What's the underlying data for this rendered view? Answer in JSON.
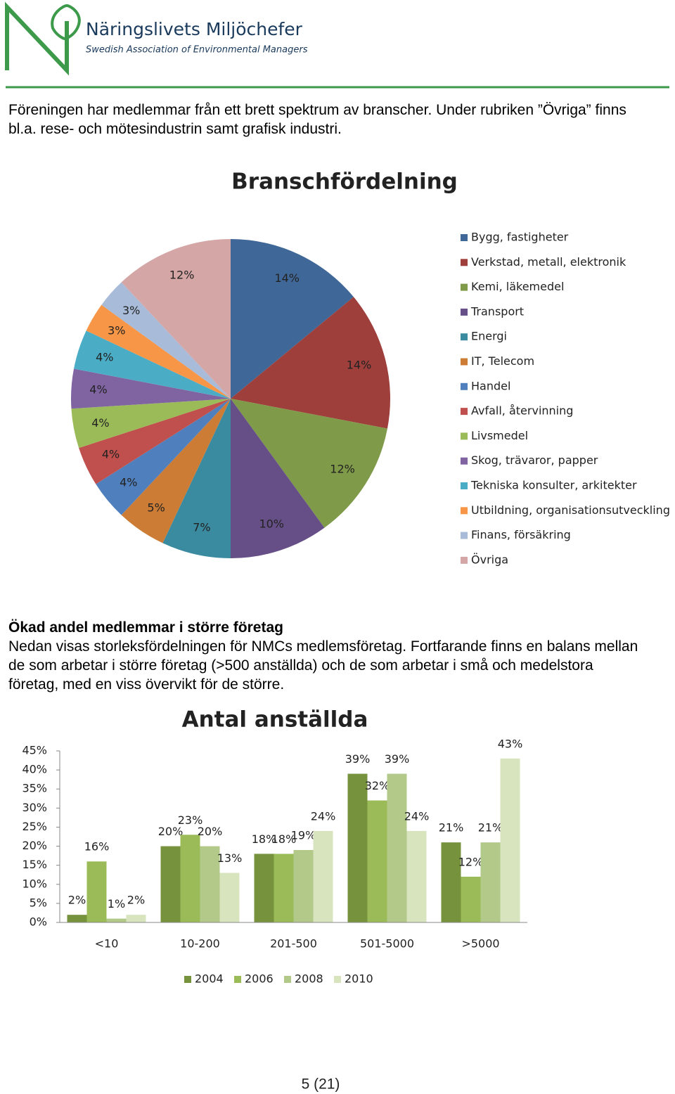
{
  "header": {
    "org_name": "Näringslivets Miljöchefer",
    "org_subtitle": "Swedish Association of Environmental Managers"
  },
  "intro": "Föreningen har medlemmar från ett brett spektrum av branscher. Under rubriken ”Övriga” finns bl.a. rese- och mötesindustrin samt grafisk industri.",
  "section": {
    "heading": "Ökad andel medlemmar i större företag",
    "text": "Nedan visas storleksfördelningen för NMCs medlemsföretag. Fortfarande finns en balans mellan de som arbetar i större företag (>500 anställda) och de som arbetar i små och medelstora företag, med en viss övervikt för de större."
  },
  "page_number": "5 (21)",
  "chart_data": [
    {
      "type": "pie",
      "title": "Branschfördelning",
      "categories": [
        "Bygg, fastigheter",
        "Verkstad, metall, elektronik",
        "Kemi, läkemedel",
        "Transport",
        "Energi",
        "IT, Telecom",
        "Handel",
        "Avfall, återvinning",
        "Livsmedel",
        "Skog, trävaror, papper",
        "Tekniska konsulter, arkitekter",
        "Utbildning, organisationsutveckling",
        "Finans, försäkring",
        "Övriga"
      ],
      "values": [
        14,
        14,
        12,
        10,
        7,
        5,
        4,
        4,
        4,
        4,
        4,
        3,
        3,
        12
      ],
      "value_labels": [
        "14%",
        "14%",
        "12%",
        "10%",
        "7%",
        "5%",
        "4%",
        "4%",
        "4%",
        "4%",
        "4%",
        "3%",
        "3%",
        "12%"
      ],
      "colors": [
        "#3f6797",
        "#9e3f3c",
        "#7f9a48",
        "#664f87",
        "#3a8aa0",
        "#cc7c35",
        "#4f7fbd",
        "#c0504d",
        "#9bbb59",
        "#8064a2",
        "#4bacc6",
        "#f79646",
        "#a8bbd9",
        "#d5a6a6"
      ],
      "legend": "right"
    },
    {
      "type": "bar",
      "title": "Antal anställda",
      "categories": [
        "<10",
        "10-200",
        "201-500",
        "501-5000",
        ">5000"
      ],
      "series": [
        {
          "name": "2004",
          "color": "#76923c",
          "values": [
            2,
            20,
            18,
            39,
            21
          ],
          "value_labels": [
            "2%",
            "20%",
            "18%",
            "39%",
            "21%"
          ]
        },
        {
          "name": "2006",
          "color": "#9bbb59",
          "values": [
            16,
            23,
            18,
            32,
            12
          ],
          "value_labels": [
            "16%",
            "23%",
            "18%",
            "32%",
            "12%"
          ]
        },
        {
          "name": "2008",
          "color": "#b3c98a",
          "values": [
            1,
            20,
            19,
            39,
            21
          ],
          "value_labels": [
            "1%",
            "20%",
            "19%",
            "39%",
            "21%"
          ]
        },
        {
          "name": "2010",
          "color": "#d7e4bd",
          "values": [
            2,
            13,
            24,
            24,
            43
          ],
          "value_labels": [
            "2%",
            "13%",
            "24%",
            "24%",
            "43%"
          ]
        }
      ],
      "ylim": [
        0,
        45
      ],
      "yticks": [
        {
          "value": 0,
          "label": "0%"
        },
        {
          "value": 5,
          "label": "5%"
        },
        {
          "value": 10,
          "label": "10%"
        },
        {
          "value": 15,
          "label": "15%"
        },
        {
          "value": 20,
          "label": "20%"
        },
        {
          "value": 25,
          "label": "25%"
        },
        {
          "value": 30,
          "label": "30%"
        },
        {
          "value": 35,
          "label": "35%"
        },
        {
          "value": 40,
          "label": "40%"
        },
        {
          "value": 45,
          "label": "45%"
        }
      ],
      "legend": "bottom"
    }
  ]
}
